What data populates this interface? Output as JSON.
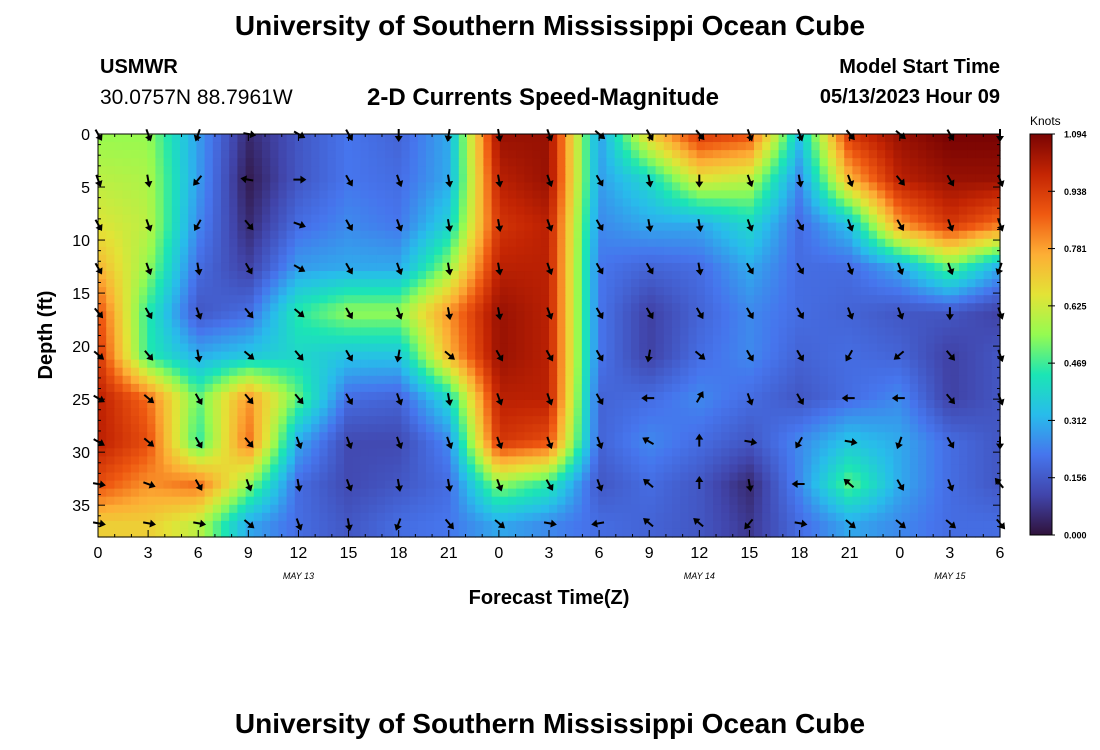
{
  "header": {
    "title": "University of Southern Mississippi Ocean Cube",
    "station": "USMWR",
    "coordinates": "30.0757N  88.7961W",
    "subtitle": "2-D Currents Speed-Magnitude",
    "model_start_label": "Model Start Time",
    "model_start_value": "05/13/2023 Hour 09"
  },
  "footer": {
    "title": "University of Southern Mississippi Ocean Cube"
  },
  "chart_data": {
    "type": "heatmap",
    "title": "2-D Currents Speed-Magnitude",
    "xlabel": "Forecast Time(Z)",
    "ylabel": "Depth (ft)",
    "x_tick_labels": [
      "0",
      "3",
      "6",
      "9",
      "12",
      "15",
      "18",
      "21",
      "0",
      "3",
      "6",
      "9",
      "12",
      "15",
      "18",
      "21",
      "0",
      "3",
      "6"
    ],
    "x_range_hours": [
      0,
      54
    ],
    "day_labels": [
      {
        "label": "MAY 13",
        "hour": 12
      },
      {
        "label": "MAY 14",
        "hour": 36
      },
      {
        "label": "MAY 15",
        "hour": 51
      }
    ],
    "y_ticks": [
      0,
      5,
      10,
      15,
      20,
      25,
      30,
      35
    ],
    "y_range_ft": [
      0,
      38
    ],
    "colorbar": {
      "label": "Knots",
      "ticks": [
        "1.094",
        "0.938",
        "0.781",
        "0.625",
        "0.469",
        "0.312",
        "0.156",
        "0.000"
      ],
      "min": 0.0,
      "max": 1.094
    },
    "arrow_hours": [
      0,
      3,
      6,
      9,
      12,
      15,
      18,
      21,
      24,
      27,
      30,
      33,
      36,
      39,
      42,
      45,
      48,
      51,
      54
    ],
    "arrow_depths_ft": [
      0,
      4.3,
      8.5,
      12.6,
      16.8,
      20.8,
      24.9,
      29.0,
      33.0,
      36.7
    ],
    "speed_grid": [
      [
        0.55,
        0.55,
        0.28,
        0.05,
        0.15,
        0.22,
        0.18,
        0.3,
        1.05,
        1.05,
        0.28,
        0.7,
        0.95,
        0.9,
        0.35,
        0.95,
        1.05,
        1.1,
        1.1
      ],
      [
        0.6,
        0.58,
        0.28,
        0.02,
        0.15,
        0.22,
        0.2,
        0.3,
        1.0,
        1.05,
        0.28,
        0.4,
        0.65,
        0.6,
        0.25,
        0.75,
        1.0,
        1.05,
        1.05
      ],
      [
        0.65,
        0.6,
        0.25,
        0.05,
        0.2,
        0.25,
        0.22,
        0.38,
        0.95,
        1.0,
        0.25,
        0.3,
        0.3,
        0.4,
        0.2,
        0.35,
        0.8,
        0.95,
        0.85
      ],
      [
        0.75,
        0.55,
        0.2,
        0.1,
        0.28,
        0.3,
        0.3,
        0.55,
        1.0,
        1.0,
        0.22,
        0.18,
        0.2,
        0.3,
        0.2,
        0.2,
        0.3,
        0.5,
        0.3
      ],
      [
        0.9,
        0.45,
        0.15,
        0.2,
        0.45,
        0.55,
        0.55,
        0.8,
        1.05,
        1.0,
        0.22,
        0.1,
        0.18,
        0.25,
        0.2,
        0.18,
        0.15,
        0.15,
        0.1
      ],
      [
        0.95,
        0.45,
        0.3,
        0.35,
        0.4,
        0.35,
        0.35,
        0.75,
        1.05,
        1.0,
        0.22,
        0.1,
        0.2,
        0.25,
        0.18,
        0.2,
        0.18,
        0.1,
        0.15
      ],
      [
        1.0,
        0.85,
        0.5,
        0.8,
        0.5,
        0.2,
        0.18,
        0.4,
        1.0,
        1.0,
        0.18,
        0.2,
        0.25,
        0.2,
        0.15,
        0.2,
        0.25,
        0.1,
        0.15
      ],
      [
        1.0,
        0.9,
        0.45,
        0.85,
        0.3,
        0.12,
        0.12,
        0.25,
        0.95,
        0.9,
        0.18,
        0.25,
        0.2,
        0.15,
        0.25,
        0.35,
        0.3,
        0.2,
        0.15
      ],
      [
        0.9,
        0.8,
        0.85,
        0.55,
        0.2,
        0.12,
        0.15,
        0.2,
        0.55,
        0.45,
        0.15,
        0.2,
        0.15,
        0.05,
        0.25,
        0.5,
        0.3,
        0.2,
        0.15
      ],
      [
        0.7,
        0.7,
        0.6,
        0.3,
        0.2,
        0.15,
        0.2,
        0.22,
        0.3,
        0.25,
        0.2,
        0.18,
        0.15,
        0.08,
        0.2,
        0.3,
        0.25,
        0.2,
        0.2
      ]
    ],
    "arrow_dirs_deg": [
      [
        150,
        160,
        200,
        100,
        120,
        150,
        180,
        190,
        170,
        160,
        130,
        150,
        140,
        160,
        160,
        140,
        130,
        150,
        180
      ],
      [
        160,
        170,
        220,
        280,
        90,
        150,
        160,
        170,
        170,
        160,
        150,
        170,
        180,
        160,
        170,
        160,
        140,
        150,
        160
      ],
      [
        150,
        160,
        210,
        140,
        110,
        150,
        160,
        170,
        170,
        160,
        150,
        170,
        170,
        160,
        150,
        160,
        150,
        160,
        160
      ],
      [
        150,
        160,
        170,
        150,
        120,
        150,
        160,
        170,
        170,
        160,
        150,
        150,
        170,
        150,
        150,
        160,
        160,
        160,
        200
      ],
      [
        140,
        150,
        160,
        140,
        130,
        150,
        160,
        170,
        170,
        160,
        150,
        150,
        150,
        150,
        150,
        160,
        160,
        180,
        160
      ],
      [
        130,
        140,
        170,
        130,
        140,
        150,
        190,
        130,
        150,
        150,
        150,
        190,
        130,
        150,
        150,
        210,
        230,
        140,
        160
      ],
      [
        120,
        130,
        150,
        140,
        140,
        150,
        160,
        170,
        160,
        160,
        150,
        270,
        30,
        160,
        150,
        270,
        270,
        140,
        160
      ],
      [
        120,
        130,
        150,
        140,
        160,
        160,
        160,
        160,
        160,
        160,
        160,
        300,
        0,
        100,
        210,
        100,
        200,
        150,
        180
      ],
      [
        100,
        110,
        150,
        160,
        170,
        160,
        170,
        170,
        160,
        150,
        160,
        310,
        0,
        170,
        270,
        310,
        150,
        160,
        320
      ],
      [
        100,
        100,
        100,
        130,
        160,
        170,
        200,
        140,
        130,
        100,
        260,
        310,
        310,
        220,
        100,
        130,
        130,
        130,
        140
      ]
    ]
  }
}
